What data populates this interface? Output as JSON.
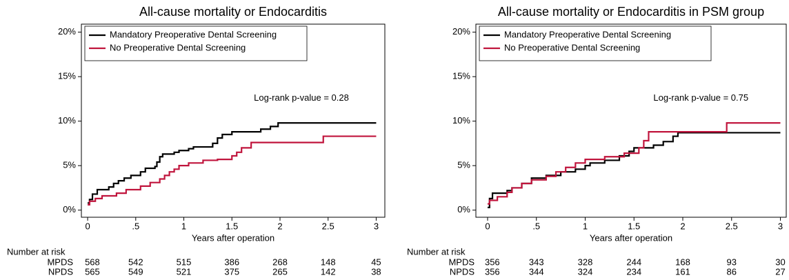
{
  "chart_data": [
    {
      "type": "step",
      "title": "All-cause mortality or Endocarditis",
      "x_label": "Years after operation",
      "xlim": [
        -0.065,
        3.09
      ],
      "ylim": [
        -0.8,
        20.9
      ],
      "xticks": [
        0,
        {
          "value": 0.5,
          "label": ".5"
        },
        1,
        1.5,
        2,
        2.5,
        3
      ],
      "yticks": [
        {
          "value": 0,
          "label": "0%"
        },
        {
          "value": 5,
          "label": "5%"
        },
        {
          "value": 10,
          "label": "10%"
        },
        {
          "value": 15,
          "label": "15%"
        },
        {
          "value": 20,
          "label": "20%"
        }
      ],
      "legend": "top-left",
      "annotation": "Log-rank p-value = 0.28",
      "series": [
        {
          "name": "Mandatory Preoperative Dental Screening",
          "color": "#000000",
          "x": [
            0,
            0.02,
            0.05,
            0.1,
            0.22,
            0.27,
            0.32,
            0.38,
            0.45,
            0.55,
            0.6,
            0.7,
            0.72,
            0.75,
            0.78,
            0.9,
            0.95,
            1.05,
            1.1,
            1.3,
            1.35,
            1.4,
            1.5,
            1.8,
            1.9,
            1.98,
            3
          ],
          "values": [
            0.8,
            1.2,
            1.8,
            2.3,
            2.6,
            3.0,
            3.3,
            3.6,
            3.9,
            4.3,
            4.7,
            4.9,
            5.4,
            6.0,
            6.3,
            6.5,
            6.7,
            6.9,
            7.1,
            7.5,
            8.1,
            8.5,
            8.8,
            9.1,
            9.4,
            9.8,
            9.8
          ]
        },
        {
          "name": "No Preoperative Dental Screening",
          "color": "#c0143c",
          "x": [
            0,
            0.02,
            0.08,
            0.15,
            0.3,
            0.4,
            0.55,
            0.65,
            0.75,
            0.8,
            0.85,
            0.9,
            0.95,
            1.05,
            1.2,
            1.35,
            1.5,
            1.55,
            1.6,
            1.7,
            2.45,
            3
          ],
          "values": [
            0.6,
            1.0,
            1.3,
            1.6,
            1.9,
            2.3,
            2.7,
            3.1,
            3.5,
            3.9,
            4.3,
            4.6,
            5.0,
            5.3,
            5.6,
            5.7,
            6.1,
            6.5,
            7.0,
            7.6,
            8.3,
            8.3
          ]
        }
      ],
      "risk_table": {
        "title": "Number at risk",
        "rows": [
          {
            "name": "MPDS",
            "values": [
              568,
              542,
              515,
              386,
              268,
              148,
              45
            ]
          },
          {
            "name": "NPDS",
            "values": [
              565,
              549,
              521,
              375,
              265,
              142,
              38
            ]
          }
        ]
      }
    },
    {
      "type": "step",
      "title": "All-cause mortality or Endocarditis in PSM group",
      "x_label": "Years after operation",
      "xlim": [
        -0.12,
        3.06
      ],
      "ylim": [
        -0.8,
        20.9
      ],
      "xticks": [
        0,
        {
          "value": 0.5,
          "label": ".5"
        },
        1,
        1.5,
        2,
        2.5,
        3
      ],
      "yticks": [
        {
          "value": 0,
          "label": "0%"
        },
        {
          "value": 5,
          "label": "5%"
        },
        {
          "value": 10,
          "label": "10%"
        },
        {
          "value": 15,
          "label": "15%"
        },
        {
          "value": 20,
          "label": "20%"
        }
      ],
      "legend": "top-left",
      "annotation": "Log-rank p-value = 0.75",
      "series": [
        {
          "name": "Mandatory Preoperative Dental Screening",
          "color": "#000000",
          "x": [
            0,
            0.02,
            0.05,
            0.2,
            0.25,
            0.35,
            0.45,
            0.6,
            0.75,
            0.9,
            1.0,
            1.05,
            1.2,
            1.35,
            1.45,
            1.5,
            1.7,
            1.8,
            1.9,
            1.95,
            3
          ],
          "values": [
            0.3,
            1.3,
            1.9,
            2.2,
            2.5,
            3.0,
            3.6,
            3.9,
            4.3,
            4.6,
            5.0,
            5.3,
            5.6,
            6.1,
            6.6,
            7.0,
            7.3,
            7.7,
            8.3,
            8.7,
            8.7
          ]
        },
        {
          "name": "No Preoperative Dental Screening",
          "color": "#c0143c",
          "x": [
            0,
            0.02,
            0.1,
            0.2,
            0.25,
            0.35,
            0.45,
            0.6,
            0.7,
            0.8,
            0.9,
            1.0,
            1.2,
            1.4,
            1.55,
            1.6,
            1.65,
            2.45,
            3
          ],
          "values": [
            0.7,
            1.1,
            1.5,
            2.0,
            2.5,
            3.0,
            3.4,
            3.8,
            4.3,
            4.8,
            5.3,
            5.7,
            6.0,
            6.4,
            7.0,
            7.8,
            8.8,
            9.8,
            9.8
          ]
        }
      ],
      "risk_table": {
        "title": "Number at risk",
        "rows": [
          {
            "name": "MPDS",
            "values": [
              356,
              343,
              328,
              244,
              168,
              93,
              30
            ]
          },
          {
            "name": "NPDS",
            "values": [
              356,
              344,
              324,
              234,
              161,
              86,
              27
            ]
          }
        ]
      }
    }
  ]
}
